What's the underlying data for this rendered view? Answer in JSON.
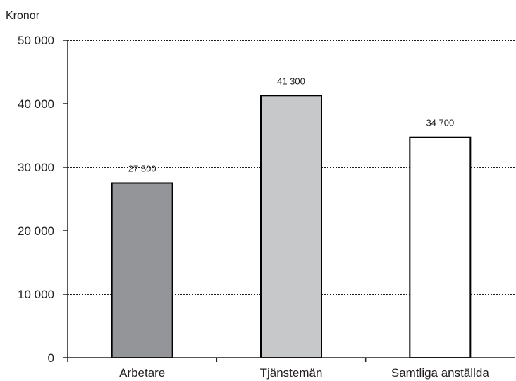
{
  "chart_data": {
    "type": "bar",
    "ylabel": "Kronor",
    "categories": [
      "Arbetare",
      "Tjänstemän",
      "Samtliga anställda"
    ],
    "values": [
      27500,
      41300,
      34700
    ],
    "data_labels": [
      "27 500",
      "41 300",
      "34 700"
    ],
    "ylim": [
      0,
      50000
    ],
    "yticks": [
      0,
      10000,
      20000,
      30000,
      40000,
      50000
    ],
    "ytick_labels": [
      "0",
      "10 000",
      "20 000",
      "30 000",
      "40 000",
      "50 000"
    ],
    "bar_colors": [
      "#939598",
      "#c7c8ca",
      "#ffffff"
    ],
    "bar_edge_color": "#000000",
    "grid": "dotted horizontal",
    "legend": "none"
  }
}
